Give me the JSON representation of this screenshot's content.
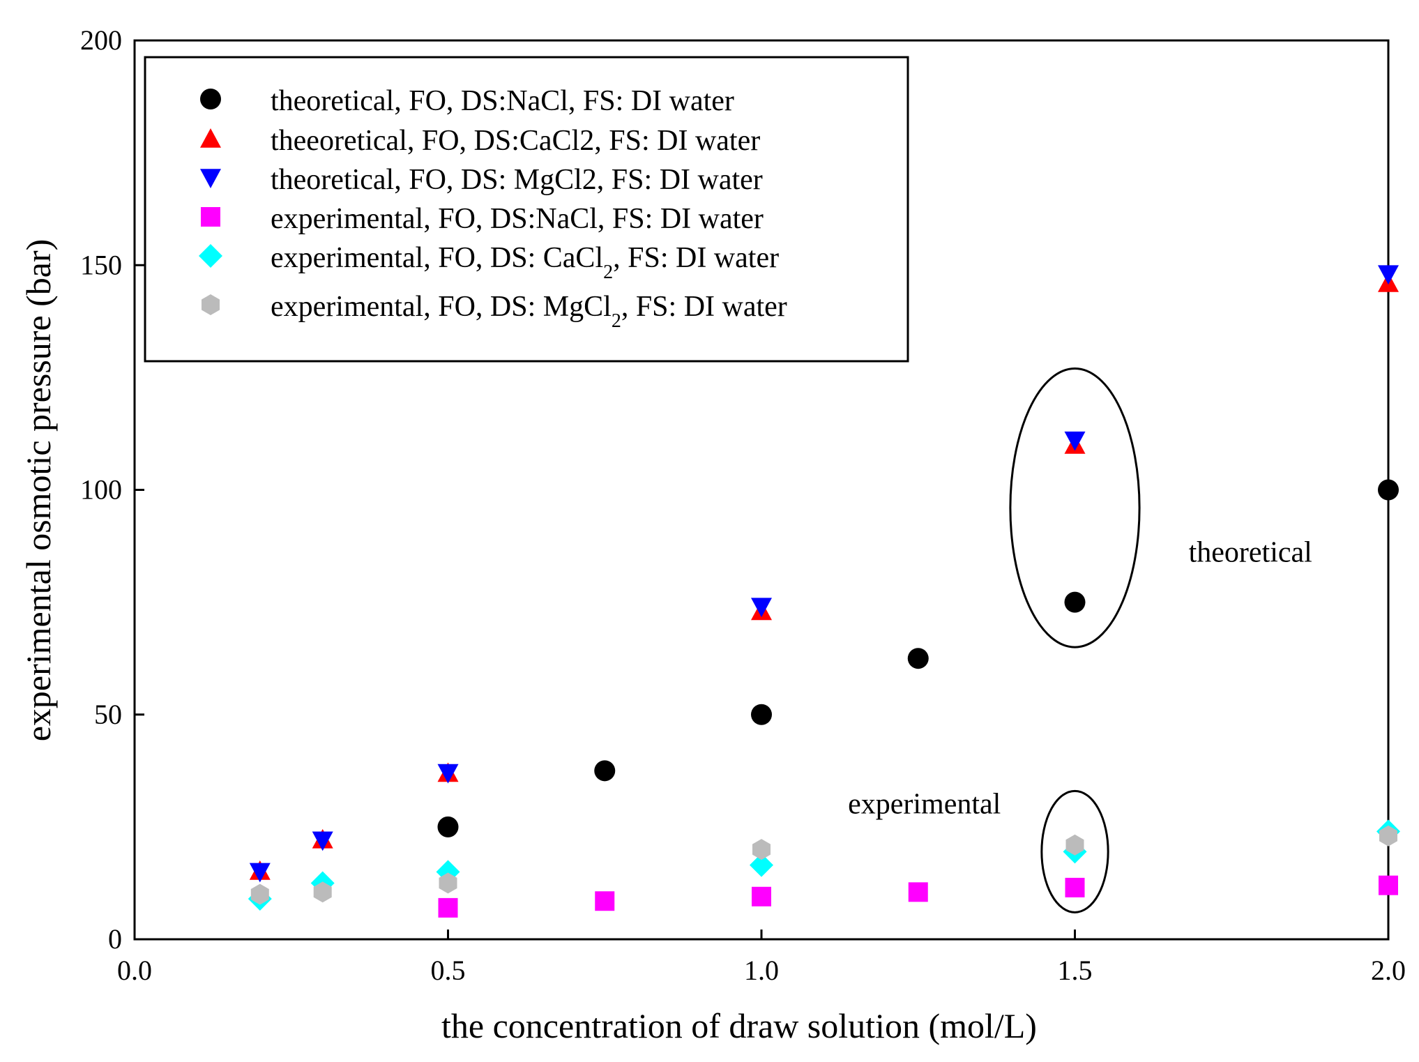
{
  "chart_data": {
    "type": "scatter",
    "title": "",
    "xlabel": "the concentration of draw solution (mol/L)",
    "ylabel": "experimental osmotic pressure (bar)",
    "xlim": [
      0.0,
      2.0
    ],
    "ylim": [
      0,
      200
    ],
    "xticks": [
      0.0,
      0.5,
      1.0,
      1.5,
      2.0
    ],
    "xtick_labels": [
      "0.0",
      "0.5",
      "1.0",
      "1.5",
      "2.0"
    ],
    "yticks": [
      0,
      50,
      100,
      150,
      200
    ],
    "ytick_labels": [
      "0",
      "50",
      "100",
      "150",
      "200"
    ],
    "grid": false,
    "legend_position": "top-left",
    "series": [
      {
        "name": "theoretical, FO, DS:NaCl, FS: DI water",
        "marker": "circle",
        "color": "#000000",
        "x": [
          0.5,
          0.75,
          1.0,
          1.25,
          1.5,
          2.0
        ],
        "y": [
          25,
          37.5,
          50,
          62.5,
          75,
          100
        ]
      },
      {
        "name": "theeoretical, FO, DS:CaCl2, FS: DI water",
        "marker": "triangle-up",
        "color": "#ff0000",
        "x": [
          0.2,
          0.3,
          0.5,
          1.0,
          1.5,
          2.0
        ],
        "y": [
          15.2,
          22.2,
          37,
          73,
          110,
          146
        ]
      },
      {
        "name": "theoretical, FO, DS: MgCl2, FS: DI water",
        "marker": "triangle-down",
        "color": "#0000ff",
        "x": [
          0.2,
          0.3,
          0.5,
          1.0,
          1.5,
          2.0
        ],
        "y": [
          15,
          22,
          37,
          74,
          111,
          148
        ]
      },
      {
        "name": "experimental, FO, DS:NaCl, FS: DI water",
        "marker": "square",
        "color": "#ff00ff",
        "x": [
          0.5,
          0.75,
          1.0,
          1.25,
          1.5,
          2.0
        ],
        "y": [
          7,
          8.5,
          9.5,
          10.5,
          11.5,
          12
        ]
      },
      {
        "name": "experimental, FO, DS: CaCl2, FS: DI water",
        "marker": "diamond",
        "color": "#00ffff",
        "x": [
          0.2,
          0.3,
          0.5,
          1.0,
          1.5,
          2.0
        ],
        "y": [
          9,
          12.5,
          15,
          16.5,
          19.5,
          24
        ]
      },
      {
        "name": "experimental, FO, DS: MgCl2, FS: DI water",
        "marker": "hexagon",
        "color": "#bbbbbb",
        "x": [
          0.2,
          0.3,
          0.5,
          1.0,
          1.5,
          2.0
        ],
        "y": [
          10,
          10.5,
          12.5,
          20,
          21,
          23
        ]
      }
    ],
    "legend": {
      "entries": [
        {
          "prefix": "theoretical, FO, DS:NaCl, FS: DI water",
          "sub": "",
          "suffix": ""
        },
        {
          "prefix": "theeoretical, FO, DS:CaCl2, FS: DI water",
          "sub": "",
          "suffix": ""
        },
        {
          "prefix": "theoretical, FO, DS: MgCl2, FS: DI water",
          "sub": "",
          "suffix": ""
        },
        {
          "prefix": "experimental, FO, DS:NaCl, FS: DI water",
          "sub": "",
          "suffix": ""
        },
        {
          "prefix": "experimental, FO, DS: CaCl",
          "sub": "2",
          "suffix": ", FS: DI water"
        },
        {
          "prefix": "experimental, FO, DS: MgCl",
          "sub": "2",
          "suffix": ", FS: DI water"
        }
      ]
    },
    "annotations": [
      {
        "text": "theoretical",
        "x": 1.78,
        "y": 84
      },
      {
        "text": "experimental",
        "x": 1.26,
        "y": 28
      }
    ],
    "ellipses": [
      {
        "cx": 1.5,
        "cy": 96,
        "rx": 0.103,
        "ry": 31
      },
      {
        "cx": 1.5,
        "cy": 19.5,
        "rx": 0.053,
        "ry": 13.5
      }
    ]
  }
}
